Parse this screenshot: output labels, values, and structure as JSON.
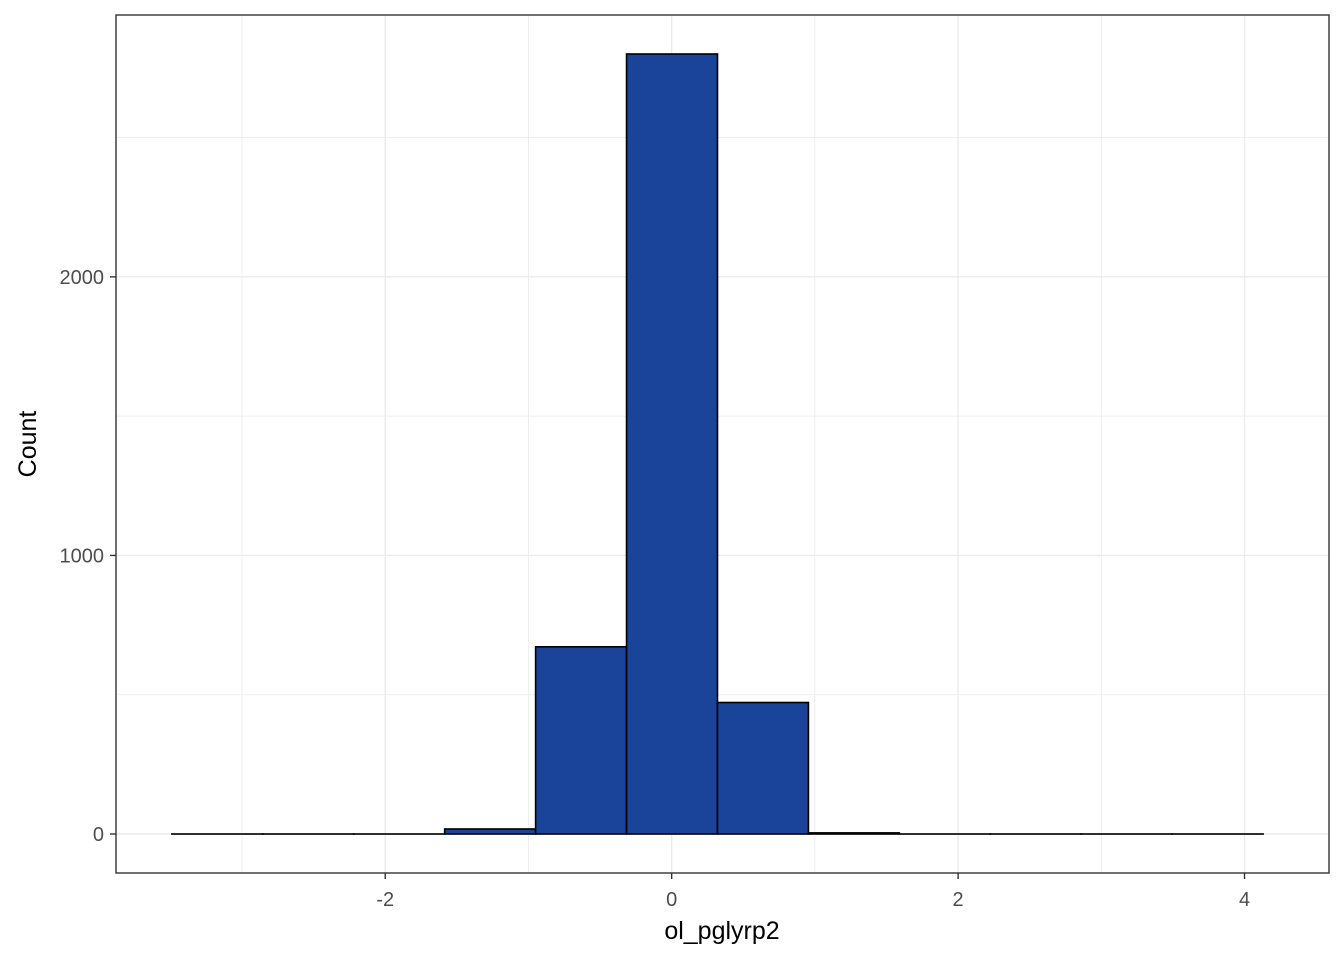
{
  "chart_data": {
    "type": "bar",
    "subtype": "histogram",
    "title": "",
    "xlabel": "ol_pglyrp2",
    "ylabel": "Count",
    "xlim": [
      -3.88,
      4.59
    ],
    "ylim": [
      -140,
      2940
    ],
    "x_ticks": [
      -2,
      0,
      2,
      4
    ],
    "x_tick_labels": [
      "-2",
      "0",
      "2",
      "4"
    ],
    "x_minor_ticks": [
      -3,
      -1,
      1,
      3
    ],
    "y_ticks": [
      0,
      1000,
      2000
    ],
    "y_tick_labels": [
      "0",
      "1000",
      "2000"
    ],
    "y_minor_ticks": [
      500,
      1500,
      2500
    ],
    "grid": true,
    "legend": "none",
    "bin_edges": [
      -3.49,
      -2.855,
      -2.22,
      -1.585,
      -0.95,
      -0.315,
      0.32,
      0.955,
      1.59,
      2.225,
      2.86,
      3.495,
      4.13
    ],
    "values": [
      0,
      0,
      0,
      18,
      672,
      2800,
      472,
      4,
      0,
      0,
      0,
      0
    ],
    "colors": {
      "fill": "#1a4499",
      "outline": "#000000",
      "grid": "#ebebeb",
      "panel_border": "#333333",
      "tick_label": "#4d4d4d"
    }
  }
}
